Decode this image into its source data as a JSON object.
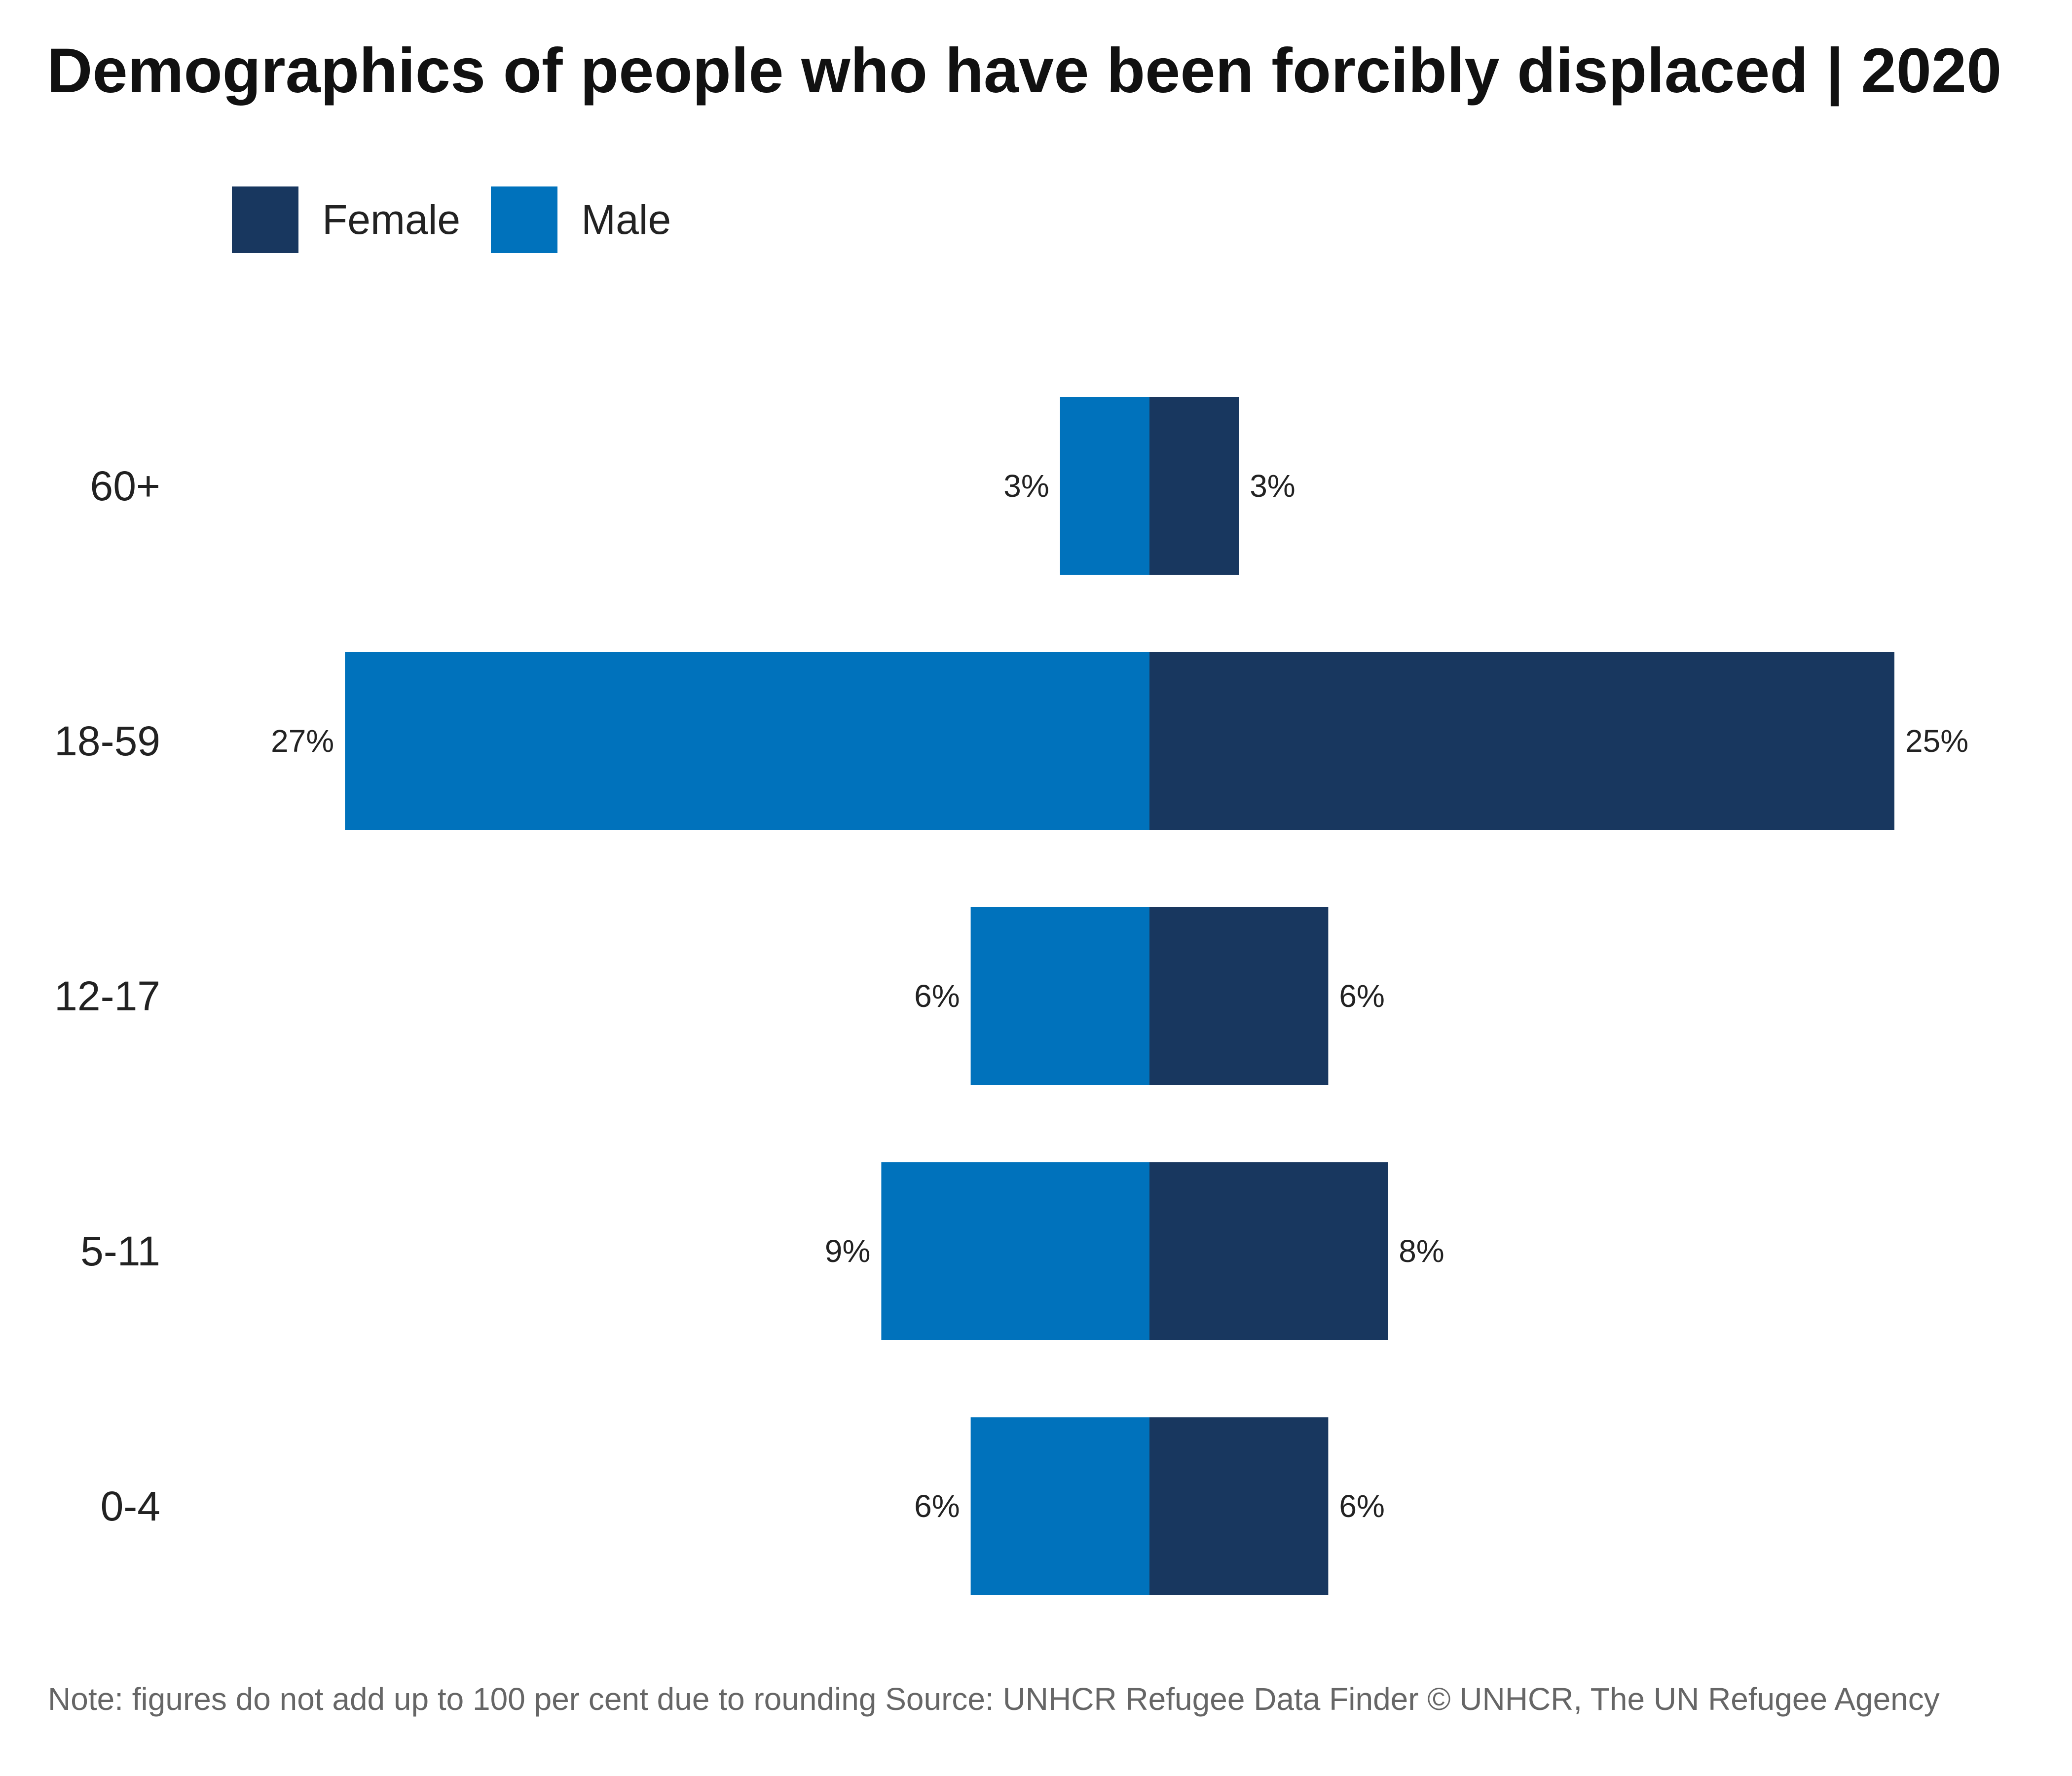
{
  "chart_data": {
    "type": "bar",
    "orientation": "horizontal-diverging",
    "title": "Demographics of people who have been forcibly displaced | 2020",
    "categories": [
      "60+",
      "18-59",
      "12-17",
      "5-11",
      "0-4"
    ],
    "series": [
      {
        "name": "Female",
        "color": "#18375f",
        "values": [
          3,
          25,
          6,
          8,
          6
        ],
        "labels": [
          "3%",
          "25%",
          "6%",
          "8%",
          "6%"
        ]
      },
      {
        "name": "Male",
        "color": "#0072bc",
        "values": [
          3,
          27,
          6,
          9,
          6
        ],
        "labels": [
          "3%",
          "27%",
          "6%",
          "9%",
          "6%"
        ]
      }
    ],
    "legend": {
      "position": "top-left"
    },
    "grid": false,
    "note": "Note: figures do not add up to 100 per cent due to rounding Source: UNHCR Refugee Data Finder © UNHCR, The UN Refugee Agency"
  }
}
